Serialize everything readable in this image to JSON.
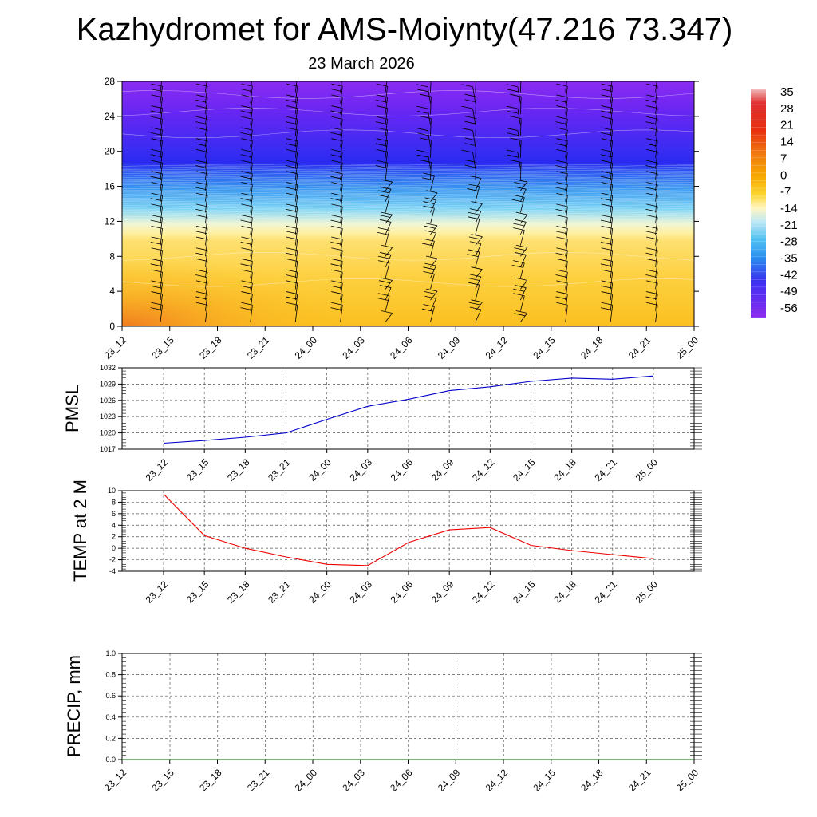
{
  "title": "Kazhydromet for AMS-Moiynty(47.216 73.347)",
  "subtitle": "23 March 2026",
  "chart_data": [
    {
      "type": "heatmap",
      "name": "temperature-wind-cross-section",
      "x_ticks": [
        "23_12",
        "23_15",
        "23_18",
        "23_21",
        "24_00",
        "24_03",
        "24_06",
        "24_09",
        "24_12",
        "24_15",
        "24_18",
        "24_21",
        "25_00"
      ],
      "y_ticks": [
        "0",
        "4",
        "8",
        "12",
        "16",
        "20",
        "24",
        "28"
      ],
      "ylim": [
        0,
        28
      ],
      "colorbar_labels": [
        "35",
        "28",
        "21",
        "14",
        "7",
        "0",
        "-7",
        "-14",
        "-21",
        "-28",
        "-35",
        "-42",
        "-49",
        "-56"
      ],
      "colorbar_range": [
        -60,
        36
      ],
      "layers": [
        {
          "height_range": [
            0,
            11
          ],
          "temperature_range": [
            -2,
            8
          ],
          "description": "warm"
        },
        {
          "height_range": [
            11,
            18
          ],
          "temperature_range": [
            -50,
            -5
          ]
        },
        {
          "height_range": [
            18,
            28
          ],
          "temperature_range": [
            -60,
            -55
          ]
        }
      ]
    },
    {
      "type": "line",
      "name": "pmsl",
      "ylabel": "PMSL",
      "categories": [
        "23_12",
        "23_15",
        "23_18",
        "23_21",
        "24_00",
        "24_03",
        "24_06",
        "24_09",
        "24_12",
        "24_15",
        "24_18",
        "24_21",
        "25_00"
      ],
      "y_ticks": [
        "1017",
        "1020",
        "1023",
        "1026",
        "1029",
        "1032"
      ],
      "ylim": [
        1017,
        1032
      ],
      "values": [
        1018.1,
        1018.6,
        1019.2,
        1020.0,
        1022.5,
        1024.9,
        1026.2,
        1027.8,
        1028.5,
        1029.5,
        1030.1,
        1029.9,
        1030.5
      ],
      "color": "#0000cc"
    },
    {
      "type": "line",
      "name": "temp-2m",
      "ylabel": "TEMP at 2 M",
      "categories": [
        "23_12",
        "23_15",
        "23_18",
        "23_21",
        "24_00",
        "24_03",
        "24_06",
        "24_09",
        "24_12",
        "24_15",
        "24_18",
        "24_21",
        "25_00"
      ],
      "y_ticks": [
        "-4",
        "-2",
        "0",
        "2",
        "4",
        "6",
        "8",
        "10"
      ],
      "ylim": [
        -4,
        10
      ],
      "values": [
        9.4,
        2.2,
        0.0,
        -1.5,
        -2.8,
        -3.0,
        1.0,
        3.2,
        3.6,
        0.5,
        -0.4,
        -1.1,
        -1.8
      ],
      "color": "#ee0000"
    },
    {
      "type": "line",
      "name": "precip",
      "ylabel": "PRECIP, mm",
      "categories": [
        "23_12",
        "23_15",
        "23_18",
        "23_21",
        "24_00",
        "24_03",
        "24_06",
        "24_09",
        "24_12",
        "24_15",
        "24_18",
        "24_21",
        "25_00"
      ],
      "y_ticks": [
        "0.0",
        "0.2",
        "0.4",
        "0.6",
        "0.8",
        "1.0"
      ],
      "ylim": [
        0,
        1
      ],
      "values": [
        0,
        0,
        0,
        0,
        0,
        0,
        0,
        0,
        0,
        0,
        0,
        0,
        0
      ],
      "color": "#006600"
    }
  ]
}
